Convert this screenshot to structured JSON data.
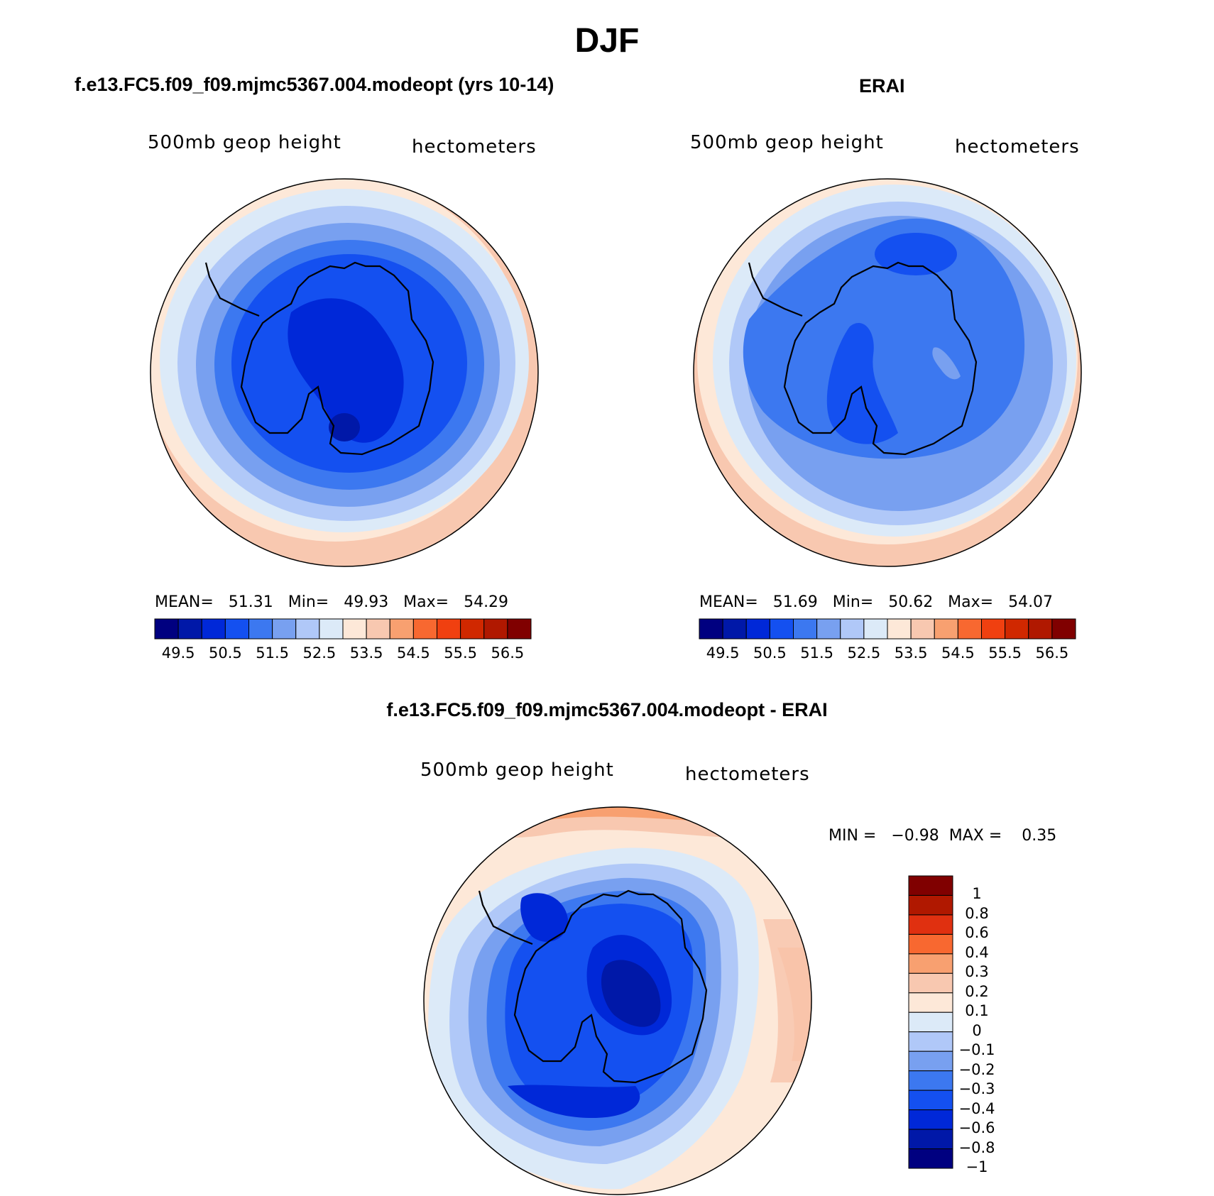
{
  "title": "DJF",
  "panels": [
    {
      "title": "f.e13.FC5.f09_f09.mjmc5367.004.modeopt (yrs 10-14)",
      "variable": "500mb  geop  height",
      "units": "hectometers",
      "stats_text": "MEAN=   51.31   Min=   49.93   Max=   54.29",
      "stats": {
        "mean": 51.31,
        "min": 49.93,
        "max": 54.29
      },
      "colorbar_labels": [
        "49.5",
        "50.5",
        "51.5",
        "52.5",
        "53.5",
        "54.5",
        "55.5",
        "56.5"
      ]
    },
    {
      "title": "ERAI",
      "variable": "500mb  geop  height",
      "units": "hectometers",
      "stats_text": "MEAN=   51.69   Min=   50.62   Max=   54.07",
      "stats": {
        "mean": 51.69,
        "min": 50.62,
        "max": 54.07
      },
      "colorbar_labels": [
        "49.5",
        "50.5",
        "51.5",
        "52.5",
        "53.5",
        "54.5",
        "55.5",
        "56.5"
      ]
    },
    {
      "title": "f.e13.FC5.f09_f09.mjmc5367.004.modeopt - ERAI",
      "variable": "500mb  geop  height",
      "units": "hectometers",
      "stats_text": "MIN =   −0.98  MAX =    0.35",
      "stats": {
        "min": -0.98,
        "max": 0.35
      },
      "colorbar_labels": [
        "1",
        "0.8",
        "0.6",
        "0.4",
        "0.3",
        "0.2",
        "0.1",
        "0",
        "−0.1",
        "−0.2",
        "−0.3",
        "−0.4",
        "−0.6",
        "−0.8",
        "−1"
      ]
    }
  ],
  "colors": {
    "abs_scale": [
      "#000080",
      "#0018a8",
      "#0028d8",
      "#1450f0",
      "#3c78f0",
      "#78a0f0",
      "#b0c8f8",
      "#dceaf8",
      "#fde8d8",
      "#f8c8b0",
      "#f8a070",
      "#f86830",
      "#f04010",
      "#d02800",
      "#b01800",
      "#800000"
    ],
    "diff_scale": [
      "#800000",
      "#b01800",
      "#e03010",
      "#f86830",
      "#f8a070",
      "#f8c8b0",
      "#fde8d8",
      "#dceaf8",
      "#b0c8f8",
      "#78a0f0",
      "#3c78f0",
      "#1450f0",
      "#0028d8",
      "#0018a8",
      "#000080"
    ]
  }
}
